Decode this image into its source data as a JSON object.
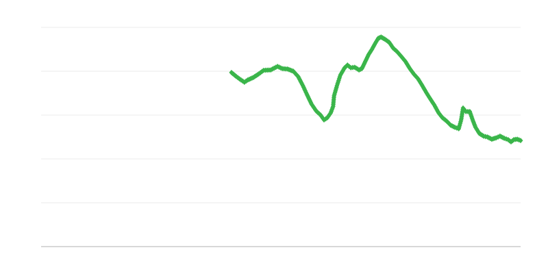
{
  "chart_data": {
    "type": "line",
    "title": "",
    "xlabel": "",
    "ylabel": "",
    "xlim": [
      0,
      100
    ],
    "ylim": [
      0,
      5
    ],
    "grid": true,
    "gridlines_y": [
      1,
      2,
      3,
      4,
      5
    ],
    "legend": "none",
    "series": [
      {
        "color": "#3ab54a",
        "marker": "diamond",
        "x": [
          39.7,
          40.7,
          41.7,
          42.4,
          43.1,
          44.3,
          45.4,
          46.4,
          47.9,
          49.3,
          50.3,
          51.4,
          52.6,
          53.6,
          54.6,
          55.4,
          56.4,
          57.4,
          58.3,
          59.0,
          59.7,
          60.4,
          60.9,
          61.1,
          61.7,
          62.4,
          63.3,
          63.9,
          64.6,
          65.4,
          66.3,
          66.9,
          67.6,
          68.3,
          69.0,
          69.7,
          70.3,
          70.9,
          71.7,
          72.6,
          73.4,
          74.3,
          75.1,
          76.0,
          76.9,
          77.7,
          78.6,
          79.4,
          80.3,
          81.1,
          82.0,
          82.9,
          83.7,
          84.6,
          85.4,
          86.3,
          87.1,
          87.6,
          88.0,
          88.6,
          89.4,
          90.0,
          90.6,
          91.4,
          92.3,
          93.1,
          94.0,
          94.9,
          95.7,
          96.6,
          97.4,
          98.0,
          98.6,
          99.3,
          100
        ],
        "y": [
          3.97,
          3.88,
          3.8,
          3.75,
          3.8,
          3.86,
          3.94,
          4.02,
          4.03,
          4.11,
          4.06,
          4.05,
          4.0,
          3.88,
          3.67,
          3.48,
          3.25,
          3.09,
          3.0,
          2.89,
          2.94,
          3.05,
          3.2,
          3.44,
          3.67,
          3.91,
          4.08,
          4.14,
          4.08,
          4.09,
          4.03,
          4.06,
          4.22,
          4.38,
          4.5,
          4.64,
          4.75,
          4.78,
          4.73,
          4.66,
          4.53,
          4.44,
          4.34,
          4.22,
          4.06,
          3.94,
          3.83,
          3.69,
          3.52,
          3.38,
          3.23,
          3.05,
          2.94,
          2.86,
          2.77,
          2.72,
          2.69,
          2.89,
          3.16,
          3.08,
          3.08,
          2.89,
          2.72,
          2.58,
          2.52,
          2.5,
          2.45,
          2.48,
          2.52,
          2.47,
          2.44,
          2.39,
          2.44,
          2.45,
          2.42
        ]
      }
    ],
    "colors": {
      "gridline": "#ebebeb",
      "axis": "#b0b0b0"
    }
  }
}
